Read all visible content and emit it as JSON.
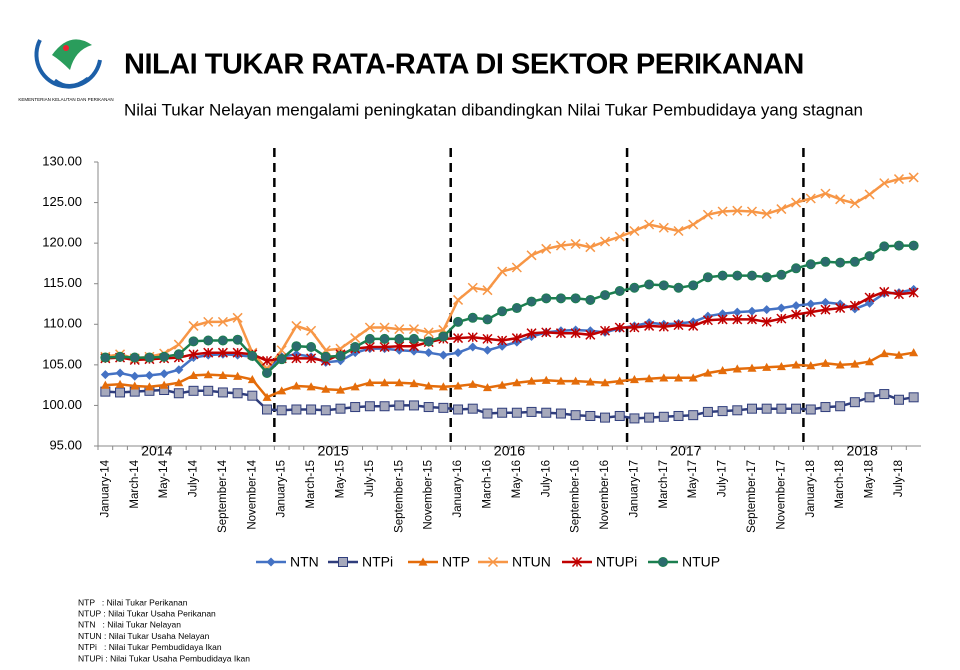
{
  "logo_text": "KEMENTERIAN KELAUTAN DAN PERIKANAN",
  "chart_data": {
    "type": "line",
    "title": "NILAI TUKAR RATA-RATA DI SEKTOR PERIKANAN",
    "subtitle": "Nilai Tukar Nelayan mengalami peningkatan dibandingkan Nilai Tukar Pembudidaya yang stagnan",
    "categories": [
      "January-14",
      null,
      "March-14",
      null,
      "May-14",
      null,
      "July-14",
      null,
      "September-14",
      null,
      "November-14",
      null,
      "January-15",
      null,
      "March-15",
      null,
      "May-15",
      null,
      "July-15",
      null,
      "September-15",
      null,
      "November-15",
      null,
      "January-16",
      null,
      "March-16",
      null,
      "May-16",
      null,
      "July-16",
      null,
      "September-16",
      null,
      "November-16",
      null,
      "January-17",
      null,
      "March-17",
      null,
      "May-17",
      null,
      "July-17",
      null,
      "September-17",
      null,
      "November-17",
      null,
      "January-18",
      null,
      "March-18",
      null,
      "May-18",
      null,
      "July-18",
      null
    ],
    "year_labels": [
      "2014",
      "2015",
      "2016",
      "2017",
      "2018"
    ],
    "ylim": [
      95,
      130
    ],
    "yticks": [
      {
        "value": 95,
        "label": "95.00"
      },
      {
        "value": 100,
        "label": "100.00"
      },
      {
        "value": 105,
        "label": "105.00"
      },
      {
        "value": 110,
        "label": "110.00"
      },
      {
        "value": 115,
        "label": "115.00"
      },
      {
        "value": 120,
        "label": "120.00"
      },
      {
        "value": 125,
        "label": "125.00"
      },
      {
        "value": 130,
        "label": "130.00"
      }
    ],
    "grid": false,
    "legend": "bottom",
    "series": [
      {
        "name": "NTN",
        "color": "#4472c4",
        "marker": "diamond",
        "values": [
          103.8,
          104.0,
          103.6,
          103.7,
          103.9,
          104.4,
          105.9,
          106.2,
          106.3,
          106.2,
          106.0,
          104.2,
          106.0,
          106.3,
          106.0,
          105.3,
          105.5,
          106.5,
          107.0,
          107.0,
          106.8,
          106.7,
          106.5,
          106.2,
          106.5,
          107.2,
          106.8,
          107.3,
          107.8,
          108.5,
          109.0,
          109.2,
          109.3,
          109.2,
          109.0,
          109.5,
          109.8,
          110.2,
          110.0,
          110.1,
          110.3,
          111.0,
          111.3,
          111.5,
          111.6,
          111.8,
          112.0,
          112.3,
          112.5,
          112.7,
          112.5,
          111.9,
          112.6,
          113.8,
          113.9,
          114.3
        ]
      },
      {
        "name": "NTPi",
        "color": "#2f3d7c",
        "marker": "square",
        "values": [
          101.7,
          101.6,
          101.7,
          101.8,
          101.9,
          101.5,
          101.8,
          101.8,
          101.6,
          101.5,
          101.2,
          99.5,
          99.4,
          99.5,
          99.5,
          99.4,
          99.6,
          99.8,
          99.9,
          99.9,
          100.0,
          100.0,
          99.8,
          99.7,
          99.5,
          99.6,
          99.0,
          99.1,
          99.1,
          99.2,
          99.1,
          99.0,
          98.8,
          98.7,
          98.5,
          98.7,
          98.4,
          98.5,
          98.6,
          98.7,
          98.8,
          99.2,
          99.3,
          99.4,
          99.6,
          99.6,
          99.6,
          99.6,
          99.5,
          99.8,
          99.9,
          100.4,
          101.0,
          101.4,
          100.7,
          101.0
        ]
      },
      {
        "name": "NTP",
        "color": "#e46c0a",
        "marker": "triangle",
        "values": [
          102.5,
          102.6,
          102.4,
          102.3,
          102.5,
          102.8,
          103.7,
          103.8,
          103.7,
          103.6,
          103.2,
          101.0,
          101.8,
          102.4,
          102.3,
          102.0,
          101.9,
          102.3,
          102.8,
          102.8,
          102.8,
          102.7,
          102.4,
          102.3,
          102.4,
          102.6,
          102.2,
          102.5,
          102.8,
          103.0,
          103.1,
          103.0,
          103.0,
          102.9,
          102.8,
          103.0,
          103.2,
          103.3,
          103.4,
          103.4,
          103.4,
          104.0,
          104.3,
          104.5,
          104.6,
          104.7,
          104.8,
          105.0,
          104.9,
          105.2,
          105.0,
          105.1,
          105.4,
          106.4,
          106.2,
          106.5
        ]
      },
      {
        "name": "NTUN",
        "color": "#f79646",
        "marker": "x",
        "values": [
          106.0,
          106.3,
          105.8,
          106.0,
          106.4,
          107.5,
          109.8,
          110.3,
          110.3,
          110.8,
          106.5,
          104.5,
          106.8,
          109.8,
          109.2,
          106.8,
          107.0,
          108.3,
          109.6,
          109.6,
          109.4,
          109.4,
          109.0,
          109.3,
          113.0,
          114.5,
          114.2,
          116.5,
          117.0,
          118.5,
          119.3,
          119.7,
          119.9,
          119.5,
          120.2,
          120.8,
          121.5,
          122.3,
          121.9,
          121.5,
          122.3,
          123.5,
          123.9,
          124.0,
          123.9,
          123.6,
          124.2,
          125.0,
          125.5,
          126.1,
          125.4,
          124.9,
          126.0,
          127.4,
          127.9,
          128.1
        ]
      },
      {
        "name": "NTUPi",
        "color": "#c00000",
        "marker": "star",
        "values": [
          105.8,
          105.9,
          105.6,
          105.7,
          105.8,
          105.9,
          106.3,
          106.5,
          106.5,
          106.5,
          106.3,
          105.5,
          105.8,
          105.8,
          105.8,
          105.5,
          106.3,
          107.0,
          107.2,
          107.2,
          107.3,
          107.3,
          107.8,
          108.2,
          108.3,
          108.4,
          108.2,
          108.0,
          108.3,
          108.9,
          109.0,
          108.9,
          108.9,
          108.7,
          109.2,
          109.6,
          109.6,
          109.8,
          109.7,
          109.9,
          109.8,
          110.5,
          110.6,
          110.6,
          110.6,
          110.3,
          110.7,
          111.2,
          111.5,
          111.8,
          112.0,
          112.3,
          113.3,
          114.0,
          113.7,
          113.9
        ]
      },
      {
        "name": "NTUP",
        "color": "#1b7f4f",
        "marker": "circle",
        "values": [
          105.9,
          106.0,
          105.9,
          105.9,
          106.0,
          106.3,
          107.9,
          108.0,
          108.0,
          108.1,
          106.1,
          104.0,
          105.7,
          107.3,
          107.2,
          106.0,
          106.1,
          107.2,
          108.2,
          108.2,
          108.2,
          108.2,
          107.9,
          108.5,
          110.3,
          110.8,
          110.6,
          111.6,
          112.0,
          112.8,
          113.2,
          113.2,
          113.2,
          113.0,
          113.6,
          114.1,
          114.5,
          114.9,
          114.8,
          114.5,
          114.8,
          115.8,
          116.0,
          116.0,
          116.0,
          115.8,
          116.1,
          116.9,
          117.4,
          117.7,
          117.6,
          117.7,
          118.4,
          119.6,
          119.7,
          119.7
        ]
      }
    ],
    "notes": [
      "NTP   : Nilai Tukar Perikanan",
      "NTUP : Nilai Tukar Usaha Perikanan",
      "NTN   : Nilai Tukar Nelayan",
      "NTUN : Nilai Tukar Usaha Nelayan",
      "NTPi   : Nilai Tukar Pembudidaya Ikan",
      "NTUPi : Nilai Tukar Usaha Pembudidaya Ikan"
    ]
  }
}
